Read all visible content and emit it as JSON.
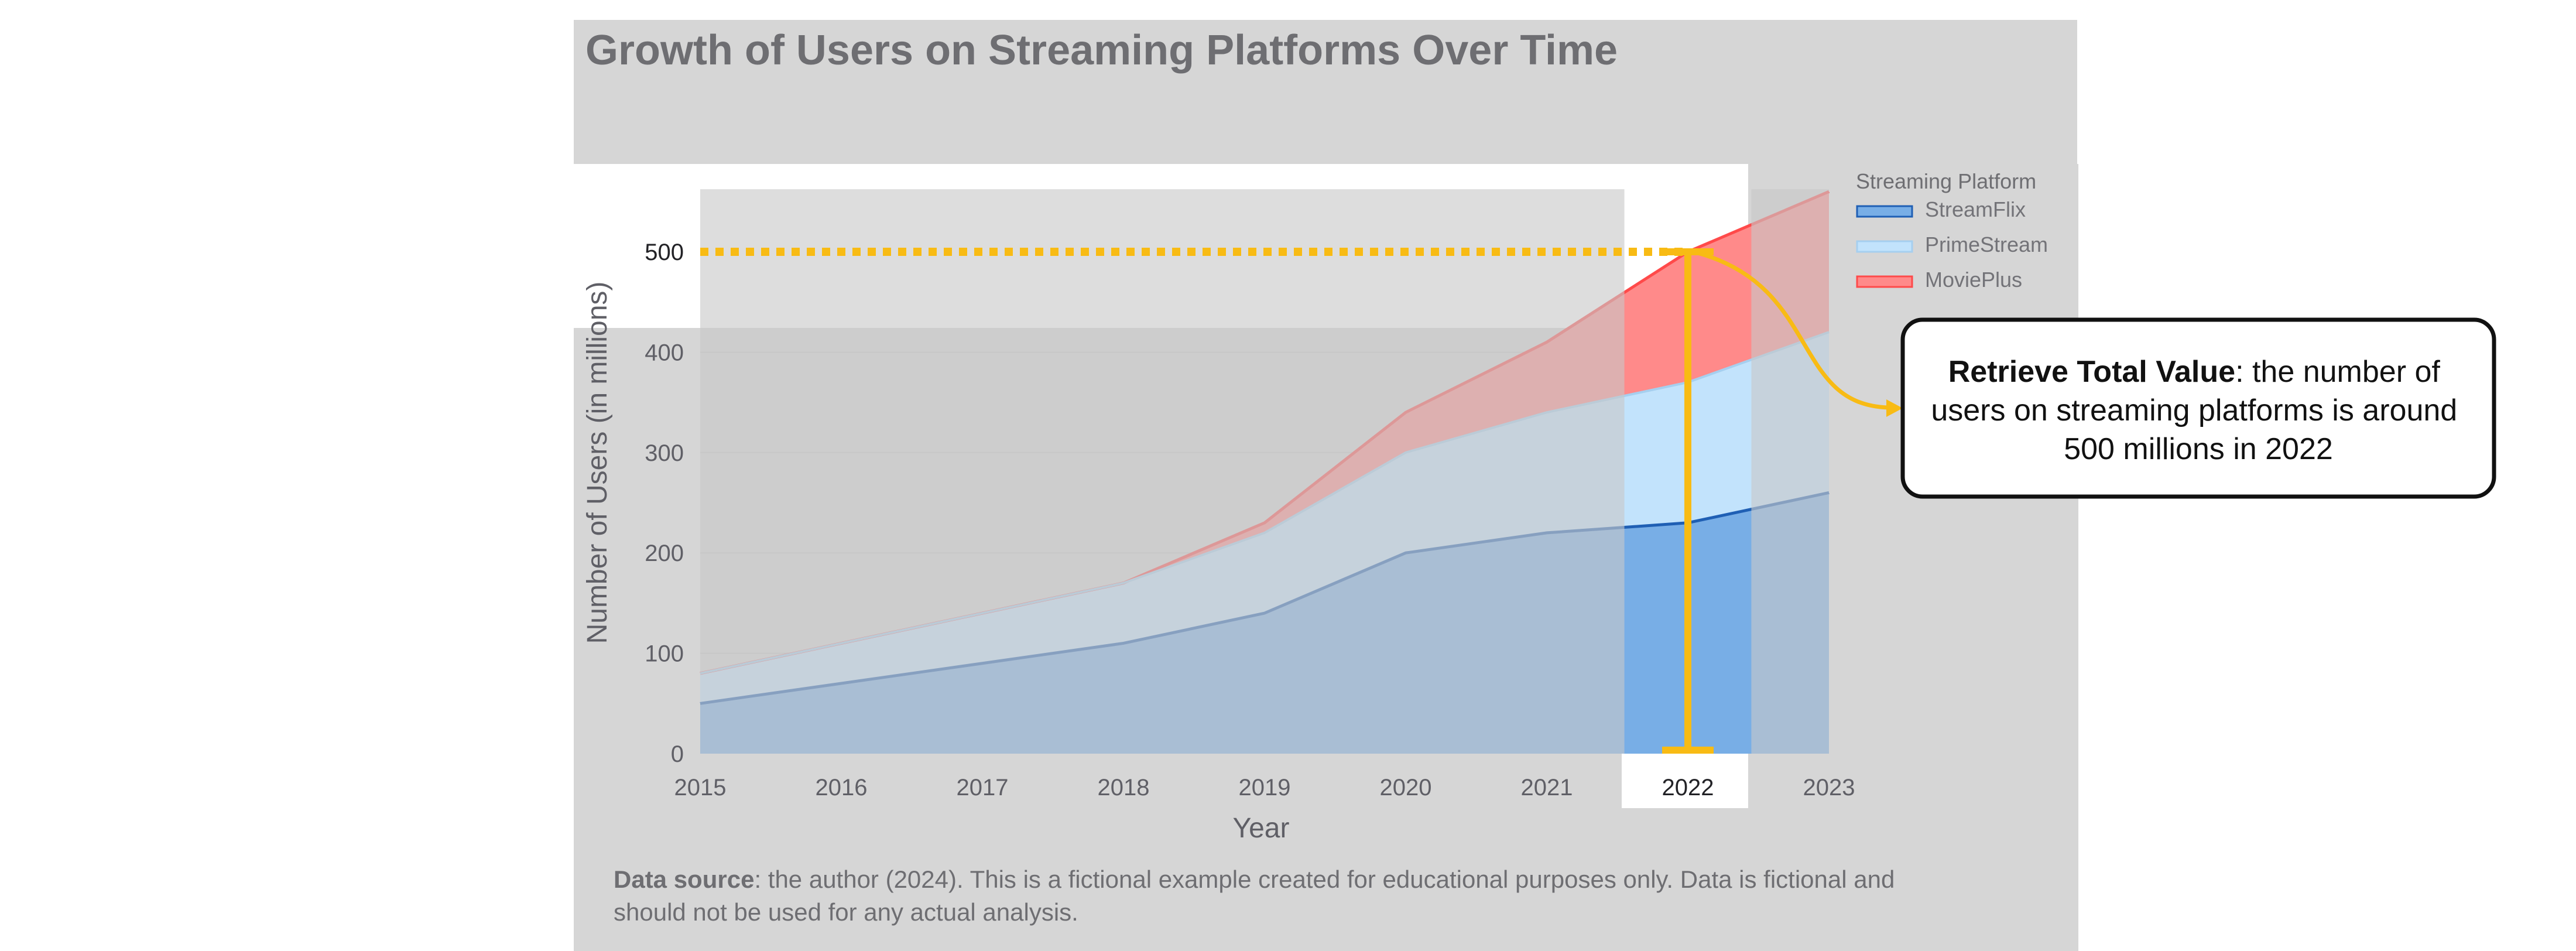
{
  "chart_data": {
    "type": "area",
    "title": "Growth of Users on Streaming Platforms Over Time",
    "xlabel": "Year",
    "ylabel": "Number of Users (in millions)",
    "x": [
      "2015",
      "2016",
      "2017",
      "2018",
      "2019",
      "2020",
      "2021",
      "2022",
      "2023"
    ],
    "ylim": [
      0,
      560
    ],
    "yticks": [
      "0",
      "100",
      "200",
      "300",
      "400",
      "500"
    ],
    "grid": true,
    "stacked": true,
    "legend_title": "Streaming Platform",
    "legend_position": "top-right",
    "series": [
      {
        "name": "StreamFlix",
        "values": [
          50,
          70,
          90,
          110,
          140,
          200,
          220,
          230,
          260
        ],
        "color": "#1f5fb4"
      },
      {
        "name": "PrimeStream",
        "values": [
          30,
          40,
          50,
          60,
          80,
          100,
          120,
          140,
          160
        ],
        "color": "#a6cfef"
      },
      {
        "name": "MoviePlus",
        "values": [
          0,
          0,
          0,
          0,
          10,
          40,
          70,
          130,
          140
        ],
        "color": "#ff4a4a"
      }
    ],
    "highlight": {
      "x": "2022",
      "total": 500,
      "reference_line": 500
    }
  },
  "annotation": {
    "bold": "Retrieve Total Value",
    "line1_rest": ": the number of",
    "line2": "users on streaming platforms is around",
    "line3": "500 millions in 2022"
  },
  "source": {
    "bold": "Data source",
    "line1_rest": ": the author (2024). This is a fictional example created for educational purposes only. Data is fictional and",
    "line2": "should not be used for any actual analysis."
  },
  "colors": {
    "highlight": "#f8bb14",
    "dim_overlay": "#c8c8c8"
  }
}
